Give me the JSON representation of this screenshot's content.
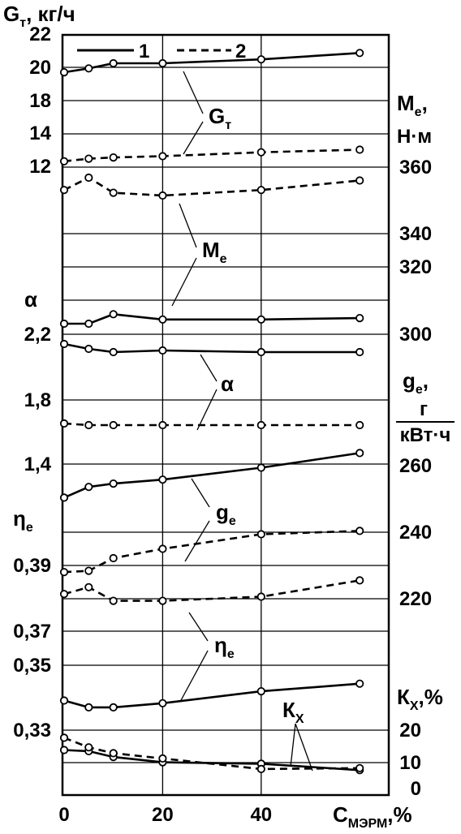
{
  "chart_data": {
    "type": "line",
    "x": [
      0,
      5,
      10,
      20,
      40,
      60
    ],
    "xticks": [
      0,
      20,
      40
    ],
    "xlabel": "С",
    "xlabel_sub": "МЭРМ",
    "xlabel_unit": ",%",
    "grid": true,
    "legend": {
      "position": "top-center",
      "entries": [
        {
          "label": "1",
          "style": "solid"
        },
        {
          "label": "2",
          "style": "dashed"
        }
      ]
    },
    "axes": {
      "G": {
        "side": "left",
        "label": "G",
        "label_sub": "т",
        "unit": ", кг/ч",
        "ticks": [
          "22",
          "20",
          "18",
          "14",
          "12"
        ]
      },
      "alpha": {
        "side": "left",
        "label": "α",
        "ticks": [
          "2,2",
          "1,8",
          "1,4"
        ]
      },
      "eta": {
        "side": "left",
        "label": "η",
        "label_sub": "е",
        "ticks": [
          "0,39",
          "0,37",
          "0,35",
          "0,33"
        ]
      },
      "M": {
        "side": "right",
        "label": "М",
        "label_sub": "е",
        "unit": ",",
        "unit_line2": "Н·м",
        "ticks": [
          "360",
          "340",
          "320",
          "300"
        ]
      },
      "g": {
        "side": "right",
        "label": "g",
        "label_sub": "е",
        "unit": ",",
        "unit_num": "г",
        "unit_den": "кВт·ч",
        "ticks": [
          "260",
          "240",
          "220"
        ]
      },
      "K": {
        "side": "right",
        "label": "К",
        "label_sub": "Х",
        "unit": ",%",
        "ticks": [
          "20",
          "10",
          "0"
        ]
      }
    },
    "series": [
      {
        "param": "G",
        "label": "G",
        "label_sub": "т",
        "style": "solid",
        "x": [
          0,
          5,
          10,
          20,
          40,
          60
        ],
        "values": [
          19.1,
          19.4,
          19.8,
          19.8,
          20.1,
          20.6
        ]
      },
      {
        "param": "G",
        "style": "dashed",
        "x": [
          0,
          5,
          10,
          20,
          40,
          60
        ],
        "values": [
          12.2,
          12.4,
          12.5,
          12.6,
          12.9,
          13.1
        ]
      },
      {
        "param": "M",
        "label": "М",
        "label_sub": "е",
        "style": "solid",
        "x": [
          0,
          5,
          10,
          20,
          40,
          60
        ],
        "values": [
          303.8,
          303.8,
          307.2,
          305.3,
          305.3,
          305.8
        ]
      },
      {
        "param": "M",
        "style": "dashed",
        "x": [
          0,
          5,
          10,
          20,
          40,
          60
        ],
        "values": [
          351.8,
          356.2,
          350.8,
          349.8,
          351.8,
          355.2
        ]
      },
      {
        "param": "alpha",
        "label": "α",
        "style": "solid",
        "x": [
          0,
          5,
          10,
          20,
          40,
          60
        ],
        "values": [
          2.14,
          2.11,
          2.09,
          2.1,
          2.09,
          2.09
        ]
      },
      {
        "param": "alpha",
        "style": "dashed",
        "x": [
          0,
          5,
          10,
          20,
          40,
          60
        ],
        "values": [
          1.65,
          1.64,
          1.64,
          1.64,
          1.64,
          1.64
        ]
      },
      {
        "param": "g",
        "label": "g",
        "label_sub": "е",
        "style": "solid",
        "x": [
          0,
          5,
          10,
          20,
          40,
          60
        ],
        "values": [
          250.4,
          253.6,
          254.6,
          255.8,
          259.4,
          263.8
        ]
      },
      {
        "param": "g",
        "style": "dashed",
        "x": [
          0,
          5,
          10,
          20,
          40,
          60
        ],
        "values": [
          228.0,
          228.4,
          232.2,
          235.0,
          239.4,
          240.4
        ]
      },
      {
        "param": "eta",
        "label": "η",
        "label_sub": "е",
        "style": "solid",
        "x": [
          0,
          5,
          10,
          20,
          40,
          60
        ],
        "values": [
          0.3403,
          0.3378,
          0.3378,
          0.3393,
          0.3437,
          0.3465
        ]
      },
      {
        "param": "eta",
        "style": "dashed",
        "x": [
          0,
          5,
          10,
          20,
          40,
          60
        ],
        "values": [
          0.3795,
          0.382,
          0.377,
          0.377,
          0.3785,
          0.3845
        ]
      },
      {
        "param": "K",
        "label": "К",
        "label_sub": "Х",
        "style": "solid",
        "x": [
          0,
          5,
          10,
          20,
          40,
          60
        ],
        "values": [
          13.2,
          12.8,
          10.8,
          9.0,
          8.5,
          6.3
        ]
      },
      {
        "param": "K",
        "style": "dashed",
        "x": [
          0,
          5,
          10,
          20,
          40,
          60
        ],
        "values": [
          17.4,
          14.1,
          12.1,
          10.3,
          6.7,
          7.0
        ]
      }
    ]
  }
}
